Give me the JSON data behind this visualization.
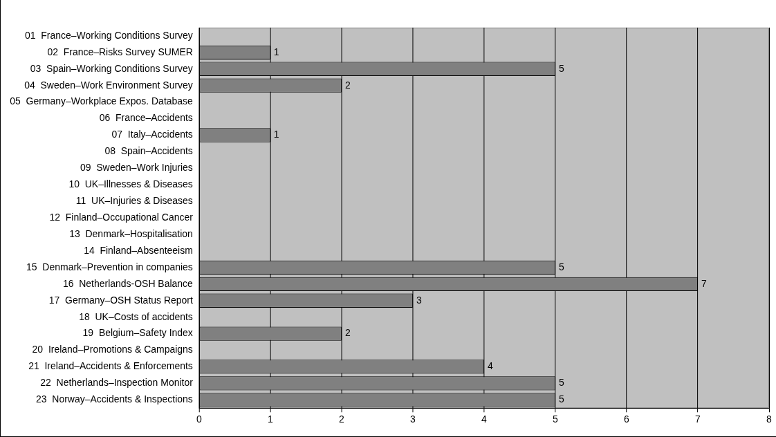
{
  "chart_data": {
    "type": "bar",
    "orientation": "horizontal",
    "categories": [
      "01  France–Working Conditions Survey",
      "02  France–Risks Survey SUMER",
      "03  Spain–Working Conditions Survey",
      "04  Sweden–Work Environment Survey",
      "05  Germany–Workplace Expos. Database",
      "06  France–Accidents",
      "07  Italy–Accidents",
      "08  Spain–Accidents",
      "09  Sweden–Work Injuries",
      "10  UK–Illnesses & Diseases",
      "11  UK–Injuries & Diseases",
      "12  Finland–Occupational Cancer",
      "13  Denmark–Hospitalisation",
      "14  Finland–Absenteeism",
      "15  Denmark–Prevention in companies",
      "16  Netherlands-OSH Balance",
      "17  Germany–OSH Status Report",
      "18  UK–Costs of accidents",
      "19  Belgium–Safety Index",
      "20  Ireland–Promotions & Campaigns",
      "21  Ireland–Accidents & Enforcements",
      "22  Netherlands–Inspection Monitor",
      "23  Norway–Accidents & Inspections"
    ],
    "values": [
      null,
      1,
      5,
      2,
      null,
      null,
      1,
      null,
      null,
      null,
      null,
      null,
      null,
      null,
      5,
      7,
      3,
      null,
      2,
      null,
      4,
      5,
      5
    ],
    "color": "#808080",
    "data_labels": true,
    "xlim": [
      0,
      8
    ],
    "xticks": [
      0,
      1,
      2,
      3,
      4,
      5,
      6,
      7,
      8
    ],
    "grid": "x",
    "legend": false
  }
}
